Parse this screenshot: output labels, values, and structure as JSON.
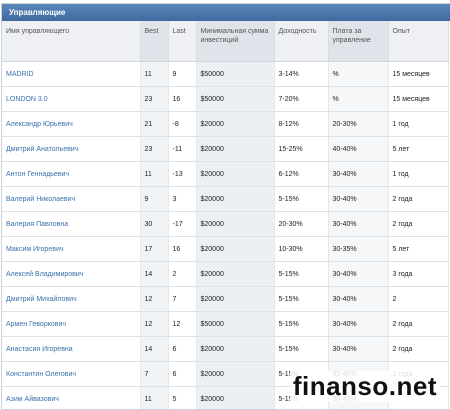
{
  "header": {
    "title": "Управляющие"
  },
  "columns": [
    "Имя управляющего",
    "Best",
    "Last",
    "Минимальная сумма инвестиций",
    "Доходность",
    "Плата за управление",
    "Опыт"
  ],
  "rows": [
    [
      "MADRID",
      "11",
      "9",
      "$50000",
      "3-14%",
      "%",
      "15 месяцев"
    ],
    [
      "LONDON 3.0",
      "23",
      "16",
      "$50000",
      "7-20%",
      "%",
      "15 месяцев"
    ],
    [
      "Александр Юрьевич",
      "21",
      "-8",
      "$20000",
      "8-12%",
      "20-30%",
      "1 год"
    ],
    [
      "Дмитрий Анатольевич",
      "23",
      "-11",
      "$20000",
      "15-25%",
      "40-40%",
      "5 лет"
    ],
    [
      "Антон Геннадьевич",
      "11",
      "-13",
      "$20000",
      "6-12%",
      "30-40%",
      "1 год"
    ],
    [
      "Валерий Николаевич",
      "9",
      "3",
      "$20000",
      "5-15%",
      "30-40%",
      "2 года"
    ],
    [
      "Валерия Павловна",
      "30",
      "-17",
      "$20000",
      "20-30%",
      "30-40%",
      "2 года"
    ],
    [
      "Максим Игоревич",
      "17",
      "16",
      "$20000",
      "10-30%",
      "30-35%",
      "5 лет"
    ],
    [
      "Алексей Владимирович",
      "14",
      "2",
      "$20000",
      "5-15%",
      "30-40%",
      "3 года"
    ],
    [
      "Дмитрий Михайлович",
      "12",
      "7",
      "$20000",
      "5-15%",
      "30-40%",
      "2"
    ],
    [
      "Армен Геворкович",
      "12",
      "12",
      "$50000",
      "5-15%",
      "30-40%",
      "2 года"
    ],
    [
      "Анастасия Игоревна",
      "14",
      "6",
      "$20000",
      "5-15%",
      "30-40%",
      "2 года"
    ],
    [
      "Константин Олегович",
      "7",
      "6",
      "$20000",
      "5-15%",
      "30-40%",
      "2 года"
    ],
    [
      "Азим Айвазович",
      "11",
      "5",
      "$20000",
      "5-15%",
      "30-40%",
      ""
    ]
  ],
  "watermark": "finanso.net"
}
